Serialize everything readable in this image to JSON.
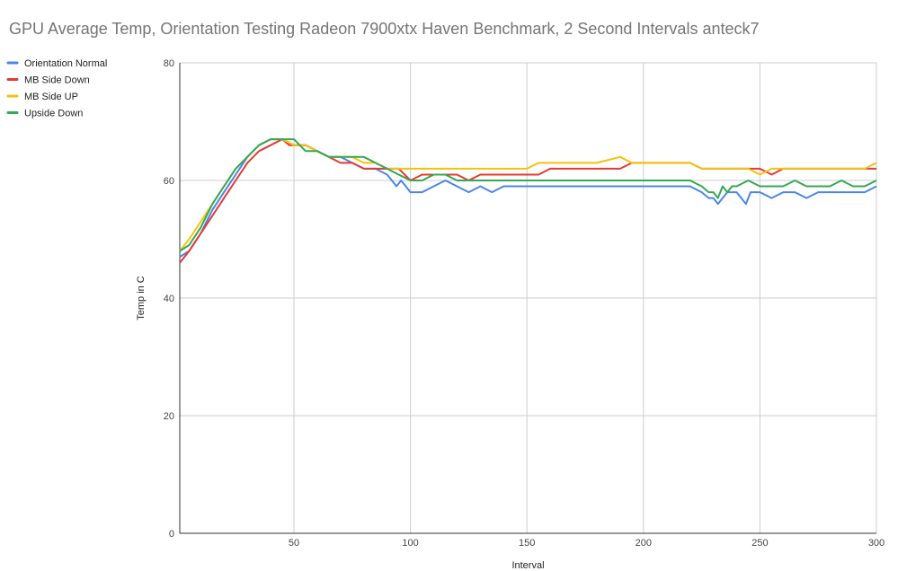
{
  "chart_data": {
    "type": "line",
    "title": "GPU Average Temp, Orientation Testing Radeon 7900xtx Haven Benchmark, 2 Second Intervals anteck7",
    "xlabel": "Interval",
    "ylabel": "Temp in C",
    "xlim": [
      1,
      300
    ],
    "ylim": [
      0,
      80
    ],
    "x_ticks": [
      50,
      100,
      150,
      200,
      250,
      300
    ],
    "y_ticks": [
      0,
      20,
      40,
      60,
      80
    ],
    "grid": true,
    "legend_position": "left",
    "series": [
      {
        "name": "Orientation  Normal",
        "color": "#4a86e8",
        "points": [
          [
            1,
            47
          ],
          [
            5,
            48
          ],
          [
            10,
            51
          ],
          [
            15,
            55
          ],
          [
            20,
            58
          ],
          [
            25,
            61
          ],
          [
            30,
            64
          ],
          [
            35,
            66
          ],
          [
            40,
            67
          ],
          [
            45,
            67
          ],
          [
            50,
            66
          ],
          [
            55,
            66
          ],
          [
            60,
            65
          ],
          [
            65,
            64
          ],
          [
            70,
            64
          ],
          [
            75,
            63
          ],
          [
            80,
            62
          ],
          [
            85,
            62
          ],
          [
            90,
            61
          ],
          [
            92,
            60
          ],
          [
            94,
            59
          ],
          [
            96,
            60
          ],
          [
            98,
            59
          ],
          [
            100,
            58
          ],
          [
            105,
            58
          ],
          [
            110,
            59
          ],
          [
            115,
            60
          ],
          [
            120,
            59
          ],
          [
            125,
            58
          ],
          [
            130,
            59
          ],
          [
            135,
            58
          ],
          [
            140,
            59
          ],
          [
            145,
            59
          ],
          [
            150,
            59
          ],
          [
            160,
            59
          ],
          [
            170,
            59
          ],
          [
            180,
            59
          ],
          [
            190,
            59
          ],
          [
            200,
            59
          ],
          [
            210,
            59
          ],
          [
            220,
            59
          ],
          [
            225,
            58
          ],
          [
            228,
            57
          ],
          [
            230,
            57
          ],
          [
            232,
            56
          ],
          [
            234,
            57
          ],
          [
            236,
            58
          ],
          [
            238,
            58
          ],
          [
            240,
            58
          ],
          [
            242,
            57
          ],
          [
            244,
            56
          ],
          [
            246,
            58
          ],
          [
            250,
            58
          ],
          [
            255,
            57
          ],
          [
            260,
            58
          ],
          [
            265,
            58
          ],
          [
            270,
            57
          ],
          [
            275,
            58
          ],
          [
            280,
            58
          ],
          [
            285,
            58
          ],
          [
            290,
            58
          ],
          [
            295,
            58
          ],
          [
            300,
            59
          ]
        ]
      },
      {
        "name": "MB Side Down",
        "color": "#e53935",
        "points": [
          [
            1,
            46
          ],
          [
            5,
            48
          ],
          [
            10,
            51
          ],
          [
            15,
            54
          ],
          [
            20,
            57
          ],
          [
            25,
            60
          ],
          [
            30,
            63
          ],
          [
            35,
            65
          ],
          [
            40,
            66
          ],
          [
            45,
            67
          ],
          [
            48,
            66
          ],
          [
            50,
            66
          ],
          [
            55,
            66
          ],
          [
            60,
            65
          ],
          [
            65,
            64
          ],
          [
            70,
            63
          ],
          [
            75,
            63
          ],
          [
            80,
            62
          ],
          [
            85,
            62
          ],
          [
            90,
            62
          ],
          [
            95,
            62
          ],
          [
            100,
            60
          ],
          [
            105,
            61
          ],
          [
            110,
            61
          ],
          [
            115,
            61
          ],
          [
            120,
            61
          ],
          [
            125,
            60
          ],
          [
            130,
            61
          ],
          [
            135,
            61
          ],
          [
            140,
            61
          ],
          [
            145,
            61
          ],
          [
            150,
            61
          ],
          [
            155,
            61
          ],
          [
            160,
            62
          ],
          [
            170,
            62
          ],
          [
            180,
            62
          ],
          [
            190,
            62
          ],
          [
            195,
            63
          ],
          [
            200,
            63
          ],
          [
            210,
            63
          ],
          [
            220,
            63
          ],
          [
            225,
            62
          ],
          [
            230,
            62
          ],
          [
            235,
            62
          ],
          [
            240,
            62
          ],
          [
            245,
            62
          ],
          [
            250,
            62
          ],
          [
            255,
            61
          ],
          [
            260,
            62
          ],
          [
            265,
            62
          ],
          [
            270,
            62
          ],
          [
            275,
            62
          ],
          [
            280,
            62
          ],
          [
            285,
            62
          ],
          [
            290,
            62
          ],
          [
            295,
            62
          ],
          [
            300,
            62
          ]
        ]
      },
      {
        "name": "MB Side UP",
        "color": "#f4c20d",
        "points": [
          [
            1,
            48
          ],
          [
            5,
            50
          ],
          [
            10,
            53
          ],
          [
            15,
            56
          ],
          [
            20,
            59
          ],
          [
            25,
            62
          ],
          [
            30,
            64
          ],
          [
            35,
            66
          ],
          [
            40,
            67
          ],
          [
            45,
            67
          ],
          [
            50,
            66
          ],
          [
            55,
            66
          ],
          [
            60,
            65
          ],
          [
            65,
            64
          ],
          [
            70,
            64
          ],
          [
            75,
            64
          ],
          [
            80,
            63
          ],
          [
            85,
            63
          ],
          [
            90,
            62
          ],
          [
            95,
            62
          ],
          [
            100,
            62
          ],
          [
            105,
            62
          ],
          [
            110,
            62
          ],
          [
            115,
            62
          ],
          [
            120,
            62
          ],
          [
            125,
            62
          ],
          [
            130,
            62
          ],
          [
            135,
            62
          ],
          [
            140,
            62
          ],
          [
            145,
            62
          ],
          [
            150,
            62
          ],
          [
            155,
            63
          ],
          [
            160,
            63
          ],
          [
            170,
            63
          ],
          [
            180,
            63
          ],
          [
            190,
            64
          ],
          [
            195,
            63
          ],
          [
            200,
            63
          ],
          [
            210,
            63
          ],
          [
            220,
            63
          ],
          [
            225,
            62
          ],
          [
            230,
            62
          ],
          [
            235,
            62
          ],
          [
            240,
            62
          ],
          [
            245,
            62
          ],
          [
            250,
            61
          ],
          [
            255,
            62
          ],
          [
            260,
            62
          ],
          [
            265,
            62
          ],
          [
            270,
            62
          ],
          [
            275,
            62
          ],
          [
            280,
            62
          ],
          [
            285,
            62
          ],
          [
            290,
            62
          ],
          [
            295,
            62
          ],
          [
            300,
            63
          ]
        ]
      },
      {
        "name": "Upside Down",
        "color": "#34a853",
        "points": [
          [
            1,
            48
          ],
          [
            5,
            49
          ],
          [
            10,
            52
          ],
          [
            15,
            56
          ],
          [
            20,
            59
          ],
          [
            25,
            62
          ],
          [
            30,
            64
          ],
          [
            35,
            66
          ],
          [
            40,
            67
          ],
          [
            45,
            67
          ],
          [
            50,
            67
          ],
          [
            55,
            65
          ],
          [
            60,
            65
          ],
          [
            65,
            64
          ],
          [
            70,
            64
          ],
          [
            75,
            64
          ],
          [
            80,
            64
          ],
          [
            85,
            63
          ],
          [
            90,
            62
          ],
          [
            95,
            61
          ],
          [
            100,
            60
          ],
          [
            105,
            60
          ],
          [
            110,
            61
          ],
          [
            115,
            61
          ],
          [
            120,
            60
          ],
          [
            125,
            60
          ],
          [
            130,
            60
          ],
          [
            135,
            60
          ],
          [
            140,
            60
          ],
          [
            145,
            60
          ],
          [
            150,
            60
          ],
          [
            160,
            60
          ],
          [
            170,
            60
          ],
          [
            180,
            60
          ],
          [
            190,
            60
          ],
          [
            200,
            60
          ],
          [
            210,
            60
          ],
          [
            220,
            60
          ],
          [
            225,
            59
          ],
          [
            228,
            58
          ],
          [
            230,
            58
          ],
          [
            232,
            57
          ],
          [
            234,
            59
          ],
          [
            236,
            58
          ],
          [
            238,
            59
          ],
          [
            240,
            59
          ],
          [
            245,
            60
          ],
          [
            250,
            59
          ],
          [
            255,
            59
          ],
          [
            260,
            59
          ],
          [
            265,
            60
          ],
          [
            270,
            59
          ],
          [
            275,
            59
          ],
          [
            280,
            59
          ],
          [
            285,
            60
          ],
          [
            290,
            59
          ],
          [
            295,
            59
          ],
          [
            300,
            60
          ]
        ]
      }
    ]
  }
}
